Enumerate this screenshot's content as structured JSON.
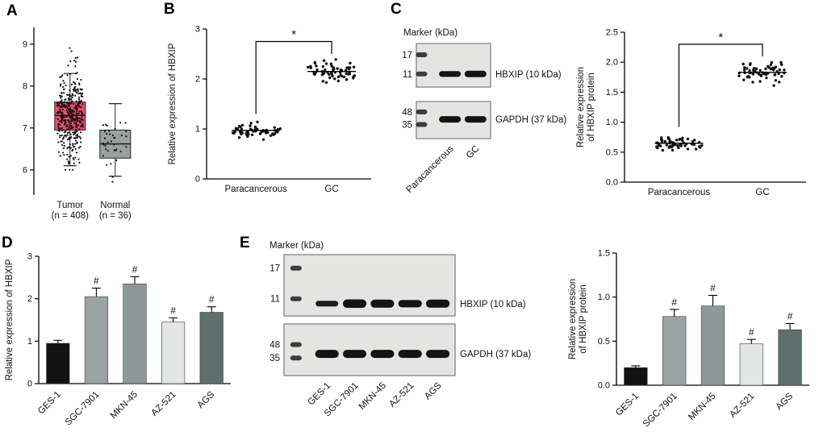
{
  "panels": [
    {
      "id": "A",
      "label": "A"
    },
    {
      "id": "B",
      "label": "B"
    },
    {
      "id": "C",
      "label": "C"
    },
    {
      "id": "D",
      "label": "D"
    },
    {
      "id": "E",
      "label": "E"
    }
  ],
  "colors": {
    "tumor_box": "#ee4a6c",
    "normal_box": "#9aa19f",
    "point": "#111111",
    "blot_background": "#e9eae7",
    "band": "#141414"
  },
  "blots": {
    "blotC": {
      "title": "Marker (kDa)",
      "lane_labels": [
        "Paracancerous",
        "GC"
      ],
      "strips": [
        {
          "marker_ticks": [
            {
              "label": "17",
              "rel": 0.26
            },
            {
              "label": "11",
              "rel": 0.7
            }
          ],
          "band_label": "HBXIP (10 kDa)",
          "band_rel": 0.7,
          "band_scale": [
            0.9,
            1.0
          ]
        },
        {
          "marker_ticks": [
            {
              "label": "48",
              "rel": 0.28
            },
            {
              "label": "35",
              "rel": 0.62
            }
          ],
          "band_label": "GAPDH (37 kDa)",
          "band_rel": 0.48,
          "band_scale": [
            1.0,
            1.0
          ]
        }
      ]
    },
    "blotE": {
      "title": "Marker (kDa)",
      "lane_labels": [
        "GES-1",
        "SGC-7901",
        "MKN-45",
        "AZ-521",
        "AGS"
      ],
      "strips": [
        {
          "marker_ticks": [
            {
              "label": "17",
              "rel": 0.22
            },
            {
              "label": "11",
              "rel": 0.72
            }
          ],
          "band_label": "HBXIP (10 kDa)",
          "band_rel": 0.8,
          "band_scale": [
            0.7,
            1.05,
            1.0,
            0.92,
            1.0
          ]
        },
        {
          "marker_ticks": [
            {
              "label": "48",
              "rel": 0.4
            },
            {
              "label": "35",
              "rel": 0.66
            }
          ],
          "band_label": "GAPDH (37 kDa)",
          "band_rel": 0.58,
          "band_scale": [
            1.0,
            1.0,
            1.0,
            1.0,
            1.0
          ]
        }
      ]
    }
  },
  "chart_data": [
    {
      "id": "A",
      "type": "box",
      "categories": [
        "Tumor",
        "Normal"
      ],
      "category_sublabels": [
        "(n = 408)",
        "(n = 36)"
      ],
      "ylim": [
        5.4,
        9.4
      ],
      "yticks": [
        6,
        7,
        8,
        9
      ],
      "ytick_labels": [
        "6",
        "7",
        "8",
        "9"
      ],
      "boxes": [
        {
          "median": 7.3,
          "q1": 6.95,
          "q3": 7.62,
          "whisker_low": 6.1,
          "whisker_high": 8.3,
          "n": 408,
          "point_sd": 0.5,
          "fill": "#ee4a6c"
        },
        {
          "median": 6.62,
          "q1": 6.28,
          "q3": 6.95,
          "whisker_low": 5.85,
          "whisker_high": 7.58,
          "n": 36,
          "point_sd": 0.4,
          "fill": "#9aa19f"
        }
      ]
    },
    {
      "id": "B",
      "type": "dots",
      "ylabel": "Relative expression of HBXIP",
      "categories": [
        "Paracancerous",
        "GC"
      ],
      "ylim": [
        0,
        3
      ],
      "yticks": [
        0,
        1,
        2,
        3
      ],
      "ytick_labels": [
        "0",
        "1",
        "2",
        "3"
      ],
      "groups": [
        {
          "name": "Paracancerous",
          "mean": 0.97,
          "sd": 0.07,
          "n": 58
        },
        {
          "name": "GC",
          "mean": 2.15,
          "sd": 0.1,
          "n": 62
        }
      ],
      "significance": {
        "label": "*",
        "bar_y": 2.75,
        "drop_to": [
          1.3,
          2.5
        ]
      }
    },
    {
      "id": "C",
      "type": "dots",
      "ylabel": "Relative expression\nof HBXIP protein",
      "categories": [
        "Paracancerous",
        "GC"
      ],
      "ylim": [
        0,
        2.5
      ],
      "yticks": [
        0,
        0.5,
        1,
        1.5,
        2,
        2.5
      ],
      "ytick_labels": [
        "0.0",
        "0.5",
        "1.0",
        "1.5",
        "2.0",
        "2.5"
      ],
      "groups": [
        {
          "name": "Paracancerous",
          "mean": 0.65,
          "sd": 0.055,
          "n": 55
        },
        {
          "name": "GC",
          "mean": 1.83,
          "sd": 0.09,
          "n": 60
        }
      ],
      "significance": {
        "label": "*",
        "bar_y": 2.3,
        "drop_to": [
          0.92,
          2.1
        ]
      }
    },
    {
      "id": "D",
      "type": "bar",
      "ylabel": "Relative expression of HBXIP",
      "categories": [
        "GES-1",
        "SGC-7901",
        "MKN-45",
        "AZ-521",
        "AGS"
      ],
      "values": [
        0.95,
        2.05,
        2.35,
        1.45,
        1.68
      ],
      "errors": [
        0.07,
        0.2,
        0.17,
        0.1,
        0.13
      ],
      "annotations": [
        "",
        "#",
        "#",
        "#",
        "#"
      ],
      "bar_colors": [
        "#121212",
        "#9aa3a2",
        "#8e9997",
        "#e2e5e3",
        "#5e706c"
      ],
      "ylim": [
        0,
        3
      ],
      "yticks": [
        0,
        1,
        2,
        3
      ],
      "ytick_labels": [
        "0",
        "1",
        "2",
        "3"
      ]
    },
    {
      "id": "Ebar",
      "type": "bar",
      "ylabel": "Relative expression\nof HBXIP protein",
      "categories": [
        "GES-1",
        "SGC-7901",
        "MKN-45",
        "AZ-521",
        "AGS"
      ],
      "values": [
        0.2,
        0.78,
        0.9,
        0.47,
        0.63
      ],
      "errors": [
        0.02,
        0.08,
        0.12,
        0.05,
        0.07
      ],
      "annotations": [
        "",
        "#",
        "#",
        "#",
        "#"
      ],
      "bar_colors": [
        "#121212",
        "#9aa3a2",
        "#8e9997",
        "#e2e5e3",
        "#5e706c"
      ],
      "ylim": [
        0,
        1.5
      ],
      "yticks": [
        0,
        0.5,
        1,
        1.5
      ],
      "ytick_labels": [
        "0.0",
        "0.5",
        "1.0",
        "1.5"
      ]
    }
  ]
}
